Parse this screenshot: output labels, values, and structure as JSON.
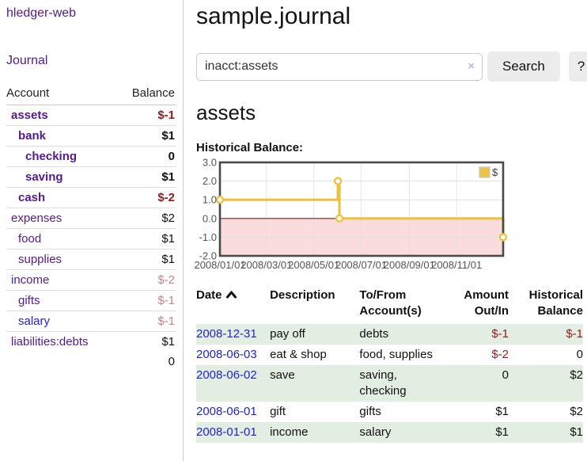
{
  "app": {
    "brand": "hledger-web"
  },
  "colors": {
    "accent_purple": "#551a8b",
    "link_blue": "#2222cc",
    "negative_red": "#96191c",
    "muted_negative_red": "#c98383",
    "row_stripe_green": "#e3eee3",
    "chart_line_gold": "#edc240",
    "chart_negative_region": "#fbdcdc",
    "chart_zero_line": "#8b1c1c",
    "chart_border": "#4a4a4a",
    "chart_grid": "#e0e0e0",
    "chart_tick_text": "#545454"
  },
  "sidebar": {
    "journal_label": "Journal",
    "accounts": {
      "headers": {
        "account": "Account",
        "balance": "Balance"
      },
      "rows": [
        {
          "name": "assets",
          "depth": 1,
          "in_query": true,
          "balance": "$-1",
          "balance_color": "negative",
          "link_state": "visited"
        },
        {
          "name": "bank",
          "depth": 2,
          "in_query": true,
          "balance": "$1",
          "balance_color": "normal",
          "link_state": "visited"
        },
        {
          "name": "checking",
          "depth": 3,
          "in_query": true,
          "balance": "0",
          "balance_color": "normal",
          "link_state": "visited"
        },
        {
          "name": "saving",
          "depth": 3,
          "in_query": true,
          "balance": "$1",
          "balance_color": "normal",
          "link_state": "visited"
        },
        {
          "name": "cash",
          "depth": 2,
          "in_query": true,
          "balance": "$-2",
          "balance_color": "negative",
          "link_state": "visited"
        },
        {
          "name": "expenses",
          "depth": 1,
          "in_query": false,
          "balance": "$2",
          "balance_color": "normal",
          "link_state": "visited"
        },
        {
          "name": "food",
          "depth": 2,
          "in_query": false,
          "balance": "$1",
          "balance_color": "normal",
          "link_state": "visited"
        },
        {
          "name": "supplies",
          "depth": 2,
          "in_query": false,
          "balance": "$1",
          "balance_color": "normal",
          "link_state": "visited"
        },
        {
          "name": "income",
          "depth": 1,
          "in_query": false,
          "balance": "$-2",
          "balance_color": "muted-negative",
          "link_state": "visited"
        },
        {
          "name": "gifts",
          "depth": 2,
          "in_query": false,
          "balance": "$-1",
          "balance_color": "muted-negative",
          "link_state": "visited"
        },
        {
          "name": "salary",
          "depth": 2,
          "in_query": false,
          "balance": "$-1",
          "balance_color": "muted-negative",
          "link_state": "unvisited"
        },
        {
          "name": "liabilities:debts",
          "depth": 1,
          "in_query": false,
          "balance": "$1",
          "balance_color": "normal",
          "link_state": "visited"
        }
      ],
      "total": "0"
    }
  },
  "main": {
    "title": "sample.journal",
    "search": {
      "value": "inacct:assets",
      "clear_icon": "×",
      "button_label": "Search",
      "help_label": "?"
    },
    "account_heading": "assets",
    "chart_label": "Historical Balance:"
  },
  "chart_data": {
    "type": "line",
    "title": "Historical Balance",
    "step": true,
    "legend": {
      "label": "$",
      "position": "top-right"
    },
    "ylim": [
      -2,
      3
    ],
    "y_ticks": [
      3.0,
      2.0,
      1.0,
      0.0,
      -1.0,
      -2.0
    ],
    "x_range": [
      "2008-01-01",
      "2008-12-31"
    ],
    "x_ticks": [
      "2008/01/01",
      "2008/03/01",
      "2008/05/01",
      "2008/07/01",
      "2008/09/01",
      "2008/11/01"
    ],
    "grid": true,
    "negative_region_shaded": true,
    "series": [
      {
        "name": "$",
        "points": [
          {
            "date": "2008-01-01",
            "value": 1
          },
          {
            "date": "2008-06-01",
            "value": 2
          },
          {
            "date": "2008-06-03",
            "value": 0
          },
          {
            "date": "2008-12-31",
            "value": -1
          }
        ]
      }
    ]
  },
  "register": {
    "headers": [
      {
        "label": "Date",
        "sorted": "asc",
        "align": "left"
      },
      {
        "label": "Description",
        "align": "left"
      },
      {
        "label": "To/From\nAccount(s)",
        "align": "left"
      },
      {
        "label": "Amount\nOut/In",
        "align": "right"
      },
      {
        "label": "Historical\nBalance",
        "align": "right"
      }
    ],
    "rows": [
      {
        "date": "2008-12-31",
        "description": "pay off",
        "accounts": "debts",
        "amount": "$-1",
        "amount_negative": true,
        "balance": "$-1",
        "balance_negative": true
      },
      {
        "date": "2008-06-03",
        "description": "eat & shop",
        "accounts": "food, supplies",
        "amount": "$-2",
        "amount_negative": true,
        "balance": "0",
        "balance_negative": false
      },
      {
        "date": "2008-06-02",
        "description": "save",
        "accounts": "saving,\nchecking",
        "amount": "0",
        "amount_negative": false,
        "balance": "$2",
        "balance_negative": false
      },
      {
        "date": "2008-06-01",
        "description": "gift",
        "accounts": "gifts",
        "amount": "$1",
        "amount_negative": false,
        "balance": "$2",
        "balance_negative": false
      },
      {
        "date": "2008-01-01",
        "description": "income",
        "accounts": "salary",
        "amount": "$1",
        "amount_negative": false,
        "balance": "$1",
        "balance_negative": false
      }
    ]
  }
}
